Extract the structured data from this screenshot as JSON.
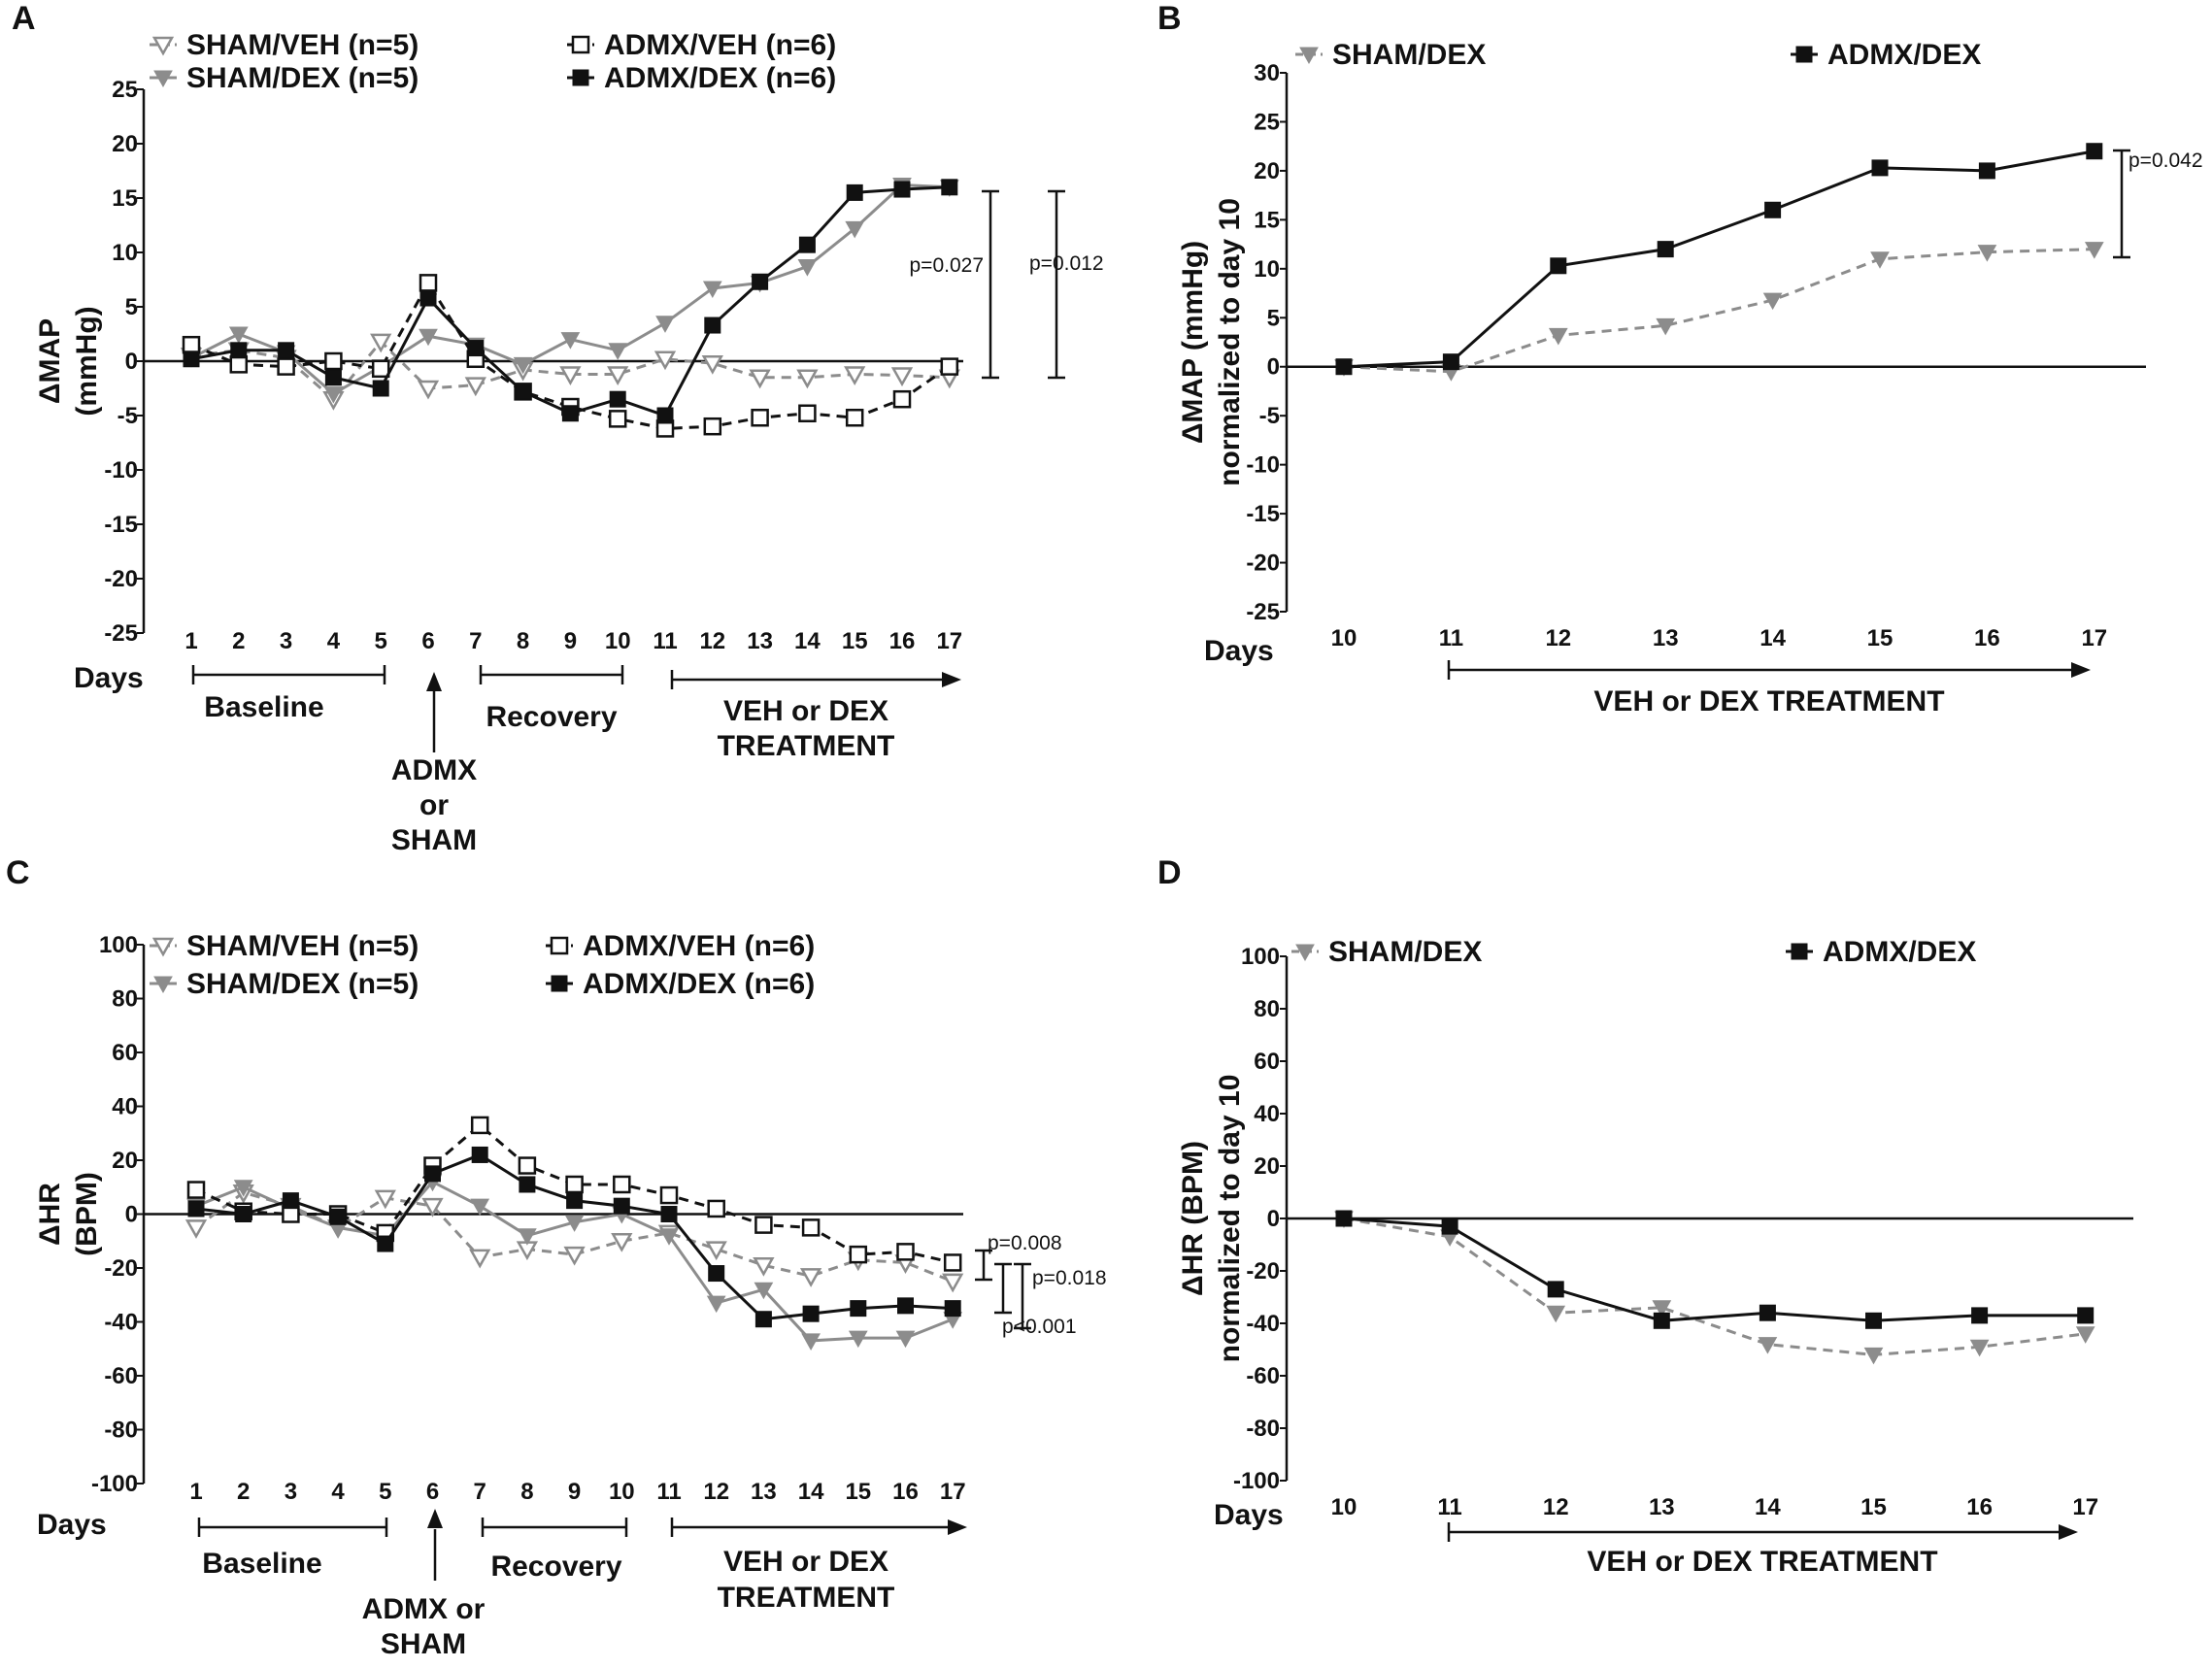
{
  "chart_data": [
    {
      "id": "A",
      "type": "line",
      "panel_label": "A",
      "ylabel_lines": [
        "ΔMAP",
        "(mmHg)"
      ],
      "xlabel": "Days",
      "ylim": [
        -25,
        25
      ],
      "yticks": [
        25,
        20,
        15,
        10,
        5,
        0,
        -5,
        -10,
        -15,
        -20,
        -25
      ],
      "x": [
        1,
        2,
        3,
        4,
        5,
        6,
        7,
        8,
        9,
        10,
        11,
        12,
        13,
        14,
        15,
        16,
        17
      ],
      "series": [
        {
          "name": "SHAM/VEH (n=5)",
          "marker": "tri-open",
          "color": "#8c8c8c",
          "dash": true,
          "values": [
            0.5,
            1.0,
            0.3,
            -3.5,
            1.8,
            -2.5,
            -2.2,
            -0.8,
            -1.2,
            -1.2,
            0.2,
            -0.2,
            -1.5,
            -1.5,
            -1.2,
            -1.3,
            -1.5
          ]
        },
        {
          "name": "SHAM/DEX (n=5)",
          "marker": "tri-fill",
          "color": "#8c8c8c",
          "dash": false,
          "values": [
            0.3,
            2.5,
            0.8,
            -3.0,
            -0.5,
            2.3,
            1.5,
            -0.3,
            2.0,
            1.0,
            3.5,
            6.7,
            7.2,
            8.7,
            12.2,
            16.2,
            16.0
          ]
        },
        {
          "name": "ADMX/VEH (n=6)",
          "marker": "sq-open",
          "color": "#111111",
          "dash": true,
          "values": [
            1.5,
            -0.3,
            -0.5,
            0.0,
            -0.7,
            7.2,
            0.2,
            -2.8,
            -4.2,
            -5.3,
            -6.2,
            -6.0,
            -5.2,
            -4.8,
            -5.2,
            -3.5,
            -0.5
          ]
        },
        {
          "name": "ADMX/DEX (n=6)",
          "marker": "sq-fill",
          "color": "#111111",
          "dash": false,
          "values": [
            0.2,
            1.0,
            1.0,
            -1.5,
            -2.5,
            5.8,
            1.2,
            -2.8,
            -4.8,
            -3.5,
            -5.0,
            3.3,
            7.3,
            10.7,
            15.5,
            15.8,
            16.0
          ]
        }
      ],
      "annotations": {
        "periods": [
          {
            "label": "Baseline"
          },
          {
            "label": "Recovery"
          },
          {
            "label_lines": [
              "VEH or DEX",
              "TREATMENT"
            ]
          }
        ],
        "surgery_label_lines": [
          "ADMX",
          "or",
          "SHAM"
        ],
        "pvalues": [
          "p=0.027",
          "p=0.012"
        ]
      }
    },
    {
      "id": "B",
      "type": "line",
      "panel_label": "B",
      "ylabel_lines": [
        "ΔMAP (mmHg)",
        "normalized to day 10"
      ],
      "xlabel": "Days",
      "ylim": [
        -25,
        30
      ],
      "yticks": [
        30,
        25,
        20,
        15,
        10,
        5,
        0,
        -5,
        -10,
        -15,
        -20,
        -25
      ],
      "x": [
        10,
        11,
        12,
        13,
        14,
        15,
        16,
        17
      ],
      "series": [
        {
          "name": "SHAM/DEX",
          "marker": "tri-fill",
          "color": "#8c8c8c",
          "dash": true,
          "values": [
            0,
            -0.5,
            3.2,
            4.2,
            6.8,
            11.0,
            11.7,
            12.0
          ]
        },
        {
          "name": "ADMX/DEX",
          "marker": "sq-fill",
          "color": "#111111",
          "dash": false,
          "values": [
            0,
            0.5,
            10.3,
            12.0,
            16.0,
            20.3,
            20.0,
            22.0
          ]
        }
      ],
      "annotations": {
        "treatment_label": "VEH or DEX TREATMENT",
        "pvalues": [
          "p=0.042"
        ]
      }
    },
    {
      "id": "C",
      "type": "line",
      "panel_label": "C",
      "ylabel_lines": [
        "ΔHR",
        "(BPM)"
      ],
      "xlabel": "Days",
      "ylim": [
        -100,
        100
      ],
      "yticks": [
        100,
        80,
        60,
        40,
        20,
        0,
        -20,
        -40,
        -60,
        -80,
        -100
      ],
      "x": [
        1,
        2,
        3,
        4,
        5,
        6,
        7,
        8,
        9,
        10,
        11,
        12,
        13,
        14,
        15,
        16,
        17
      ],
      "series": [
        {
          "name": "SHAM/VEH (n=5)",
          "marker": "tri-open",
          "color": "#8c8c8c",
          "dash": true,
          "values": [
            -5,
            8,
            3,
            -5,
            6,
            3,
            -16,
            -13,
            -15,
            -10,
            -7,
            -13,
            -19,
            -23,
            -17,
            -18,
            -25
          ]
        },
        {
          "name": "SHAM/DEX (n=5)",
          "marker": "tri-fill",
          "color": "#8c8c8c",
          "dash": false,
          "values": [
            3,
            10,
            2,
            -5,
            -8,
            12,
            3,
            -8,
            -3,
            0,
            -8,
            -33,
            -28,
            -47,
            -46,
            -46,
            -39
          ]
        },
        {
          "name": "ADMX/VEH (n=6)",
          "marker": "sq-open",
          "color": "#111111",
          "dash": true,
          "values": [
            9,
            1,
            0,
            0,
            -7,
            18,
            33,
            18,
            11,
            11,
            7,
            2,
            -4,
            -5,
            -15,
            -14,
            -18
          ]
        },
        {
          "name": "ADMX/DEX (n=6)",
          "marker": "sq-fill",
          "color": "#111111",
          "dash": false,
          "values": [
            2,
            0,
            5,
            -1,
            -11,
            15,
            22,
            11,
            5,
            3,
            0,
            -22,
            -39,
            -37,
            -35,
            -34,
            -35
          ]
        }
      ],
      "annotations": {
        "periods": [
          {
            "label": "Baseline"
          },
          {
            "label": "Recovery"
          },
          {
            "label_lines": [
              "VEH or DEX",
              "TREATMENT"
            ]
          }
        ],
        "surgery_label_lines": [
          "ADMX or",
          "SHAM"
        ],
        "pvalues": [
          "p=0.008",
          "p=0.018",
          "p<0.001"
        ]
      }
    },
    {
      "id": "D",
      "type": "line",
      "panel_label": "D",
      "ylabel_lines": [
        "ΔHR (BPM)",
        "normalized to day 10"
      ],
      "xlabel": "Days",
      "ylim": [
        -100,
        100
      ],
      "yticks": [
        100,
        80,
        60,
        40,
        20,
        0,
        -20,
        -40,
        -60,
        -80,
        -100
      ],
      "x": [
        10,
        11,
        12,
        13,
        14,
        15,
        16,
        17
      ],
      "series": [
        {
          "name": "SHAM/DEX",
          "marker": "tri-fill",
          "color": "#8c8c8c",
          "dash": true,
          "values": [
            0,
            -7,
            -36,
            -34,
            -48,
            -52,
            -49,
            -44
          ]
        },
        {
          "name": "ADMX/DEX",
          "marker": "sq-fill",
          "color": "#111111",
          "dash": false,
          "values": [
            0,
            -3,
            -27,
            -39,
            -36,
            -39,
            -37,
            -37
          ]
        }
      ],
      "annotations": {
        "treatment_label": "VEH or DEX  TREATMENT"
      }
    }
  ]
}
